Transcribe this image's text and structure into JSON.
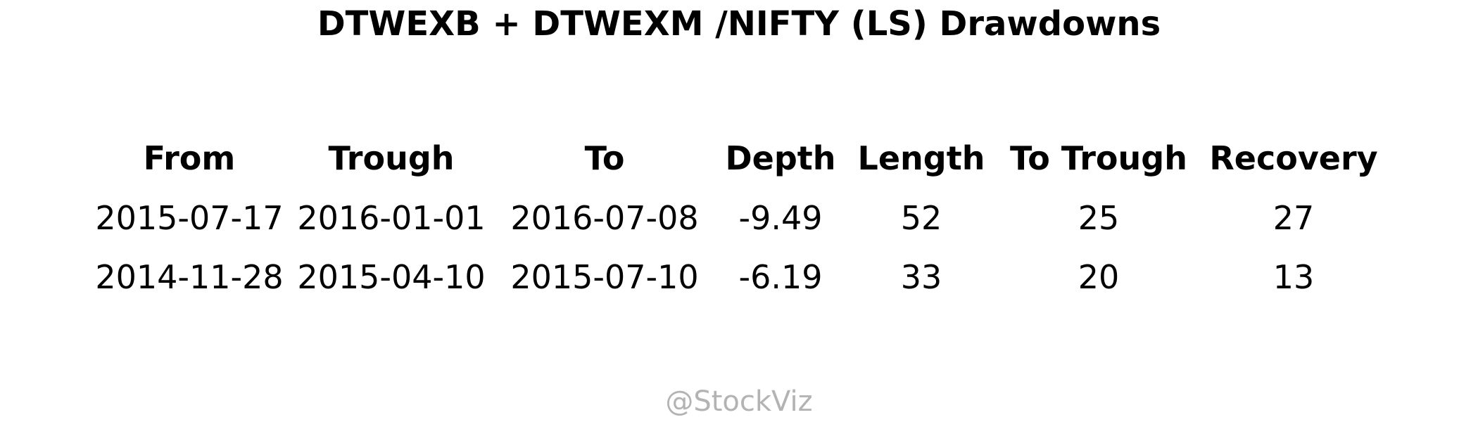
{
  "chart_data": {
    "type": "table",
    "title": "DTWEXB + DTWEXM /NIFTY (LS) Drawdowns",
    "columns": [
      "From",
      "Trough",
      "To",
      "Depth",
      "Length",
      "To Trough",
      "Recovery"
    ],
    "rows": [
      [
        "2015-07-17",
        "2016-01-01",
        "2016-07-08",
        "-9.49",
        "52",
        "25",
        "27"
      ],
      [
        "2014-11-28",
        "2015-04-10",
        "2015-07-10",
        "-6.19",
        "33",
        "20",
        "13"
      ]
    ]
  },
  "watermark": "@StockViz"
}
